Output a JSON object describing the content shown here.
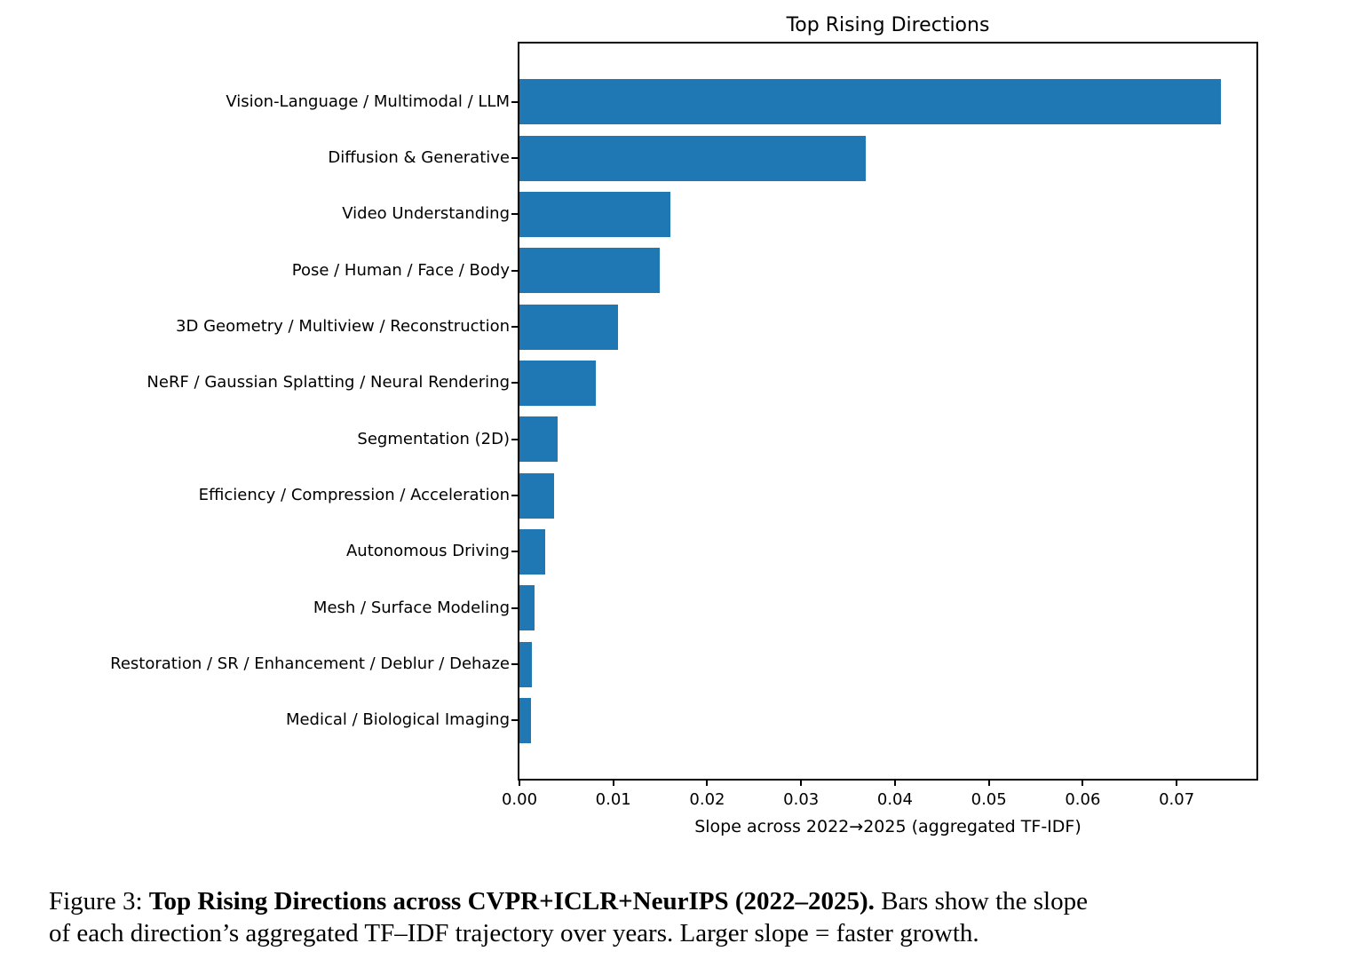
{
  "chart_data": {
    "type": "bar",
    "orientation": "horizontal",
    "title": "Top Rising Directions",
    "xlabel": "Slope across 2022→2025 (aggregated TF-IDF)",
    "ylabel": "",
    "categories": [
      "Vision-Language / Multimodal / LLM",
      "Diffusion & Generative",
      "Video Understanding",
      "Pose / Human / Face / Body",
      "3D Geometry / Multiview / Reconstruction",
      "NeRF / Gaussian Splatting / Neural Rendering",
      "Segmentation (2D)",
      "Efficiency / Compression / Acceleration",
      "Autonomous Driving",
      "Mesh / Surface Modeling",
      "Restoration / SR / Enhancement / Deblur / Dehaze",
      "Medical / Biological Imaging"
    ],
    "values": [
      0.0747,
      0.0369,
      0.0161,
      0.0149,
      0.0105,
      0.0081,
      0.0041,
      0.0037,
      0.0027,
      0.0016,
      0.0013,
      0.0012
    ],
    "xlim": [
      0,
      0.0785
    ],
    "xticks": [
      0.0,
      0.01,
      0.02,
      0.03,
      0.04,
      0.05,
      0.06,
      0.07
    ],
    "bar_color": "#1f77b4",
    "grid": false,
    "legend": null
  },
  "caption": {
    "line1": {
      "prefix": "Figure 3: ",
      "bold": "Top Rising Directions across CVPR+ICLR+NeurIPS (2022–2025).",
      "rest": " Bars show the slope"
    },
    "line2": "of each direction’s aggregated TF–IDF trajectory over years. Larger slope = faster growth."
  }
}
